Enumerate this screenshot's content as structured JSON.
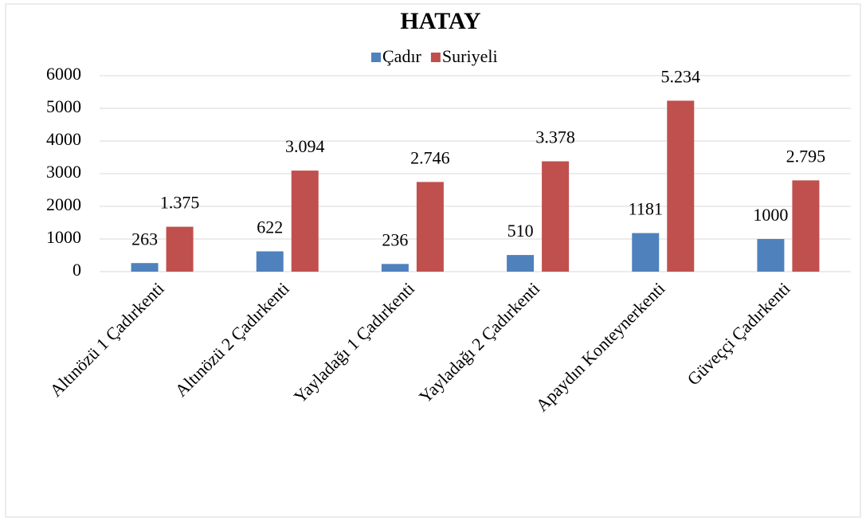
{
  "chart_data": {
    "type": "bar",
    "title": "HATAY",
    "categories": [
      "Altınözü 1 Çadırkenti",
      "Altınözü 2 Çadırkenti",
      "Yayladağı 1 Çadırkenti",
      "Yayladağı 2 Çadırkenti",
      "Apaydın Konteynerkenti",
      "Güveççi Çadırkenti"
    ],
    "series": [
      {
        "name": "Çadır",
        "color": "#4f81bd",
        "values": [
          263,
          622,
          236,
          510,
          1181,
          1000
        ]
      },
      {
        "name": "Suriyeli",
        "color": "#c0504d",
        "values": [
          1375,
          3094,
          2746,
          3378,
          5234,
          2795
        ],
        "value_labels": [
          "1.375",
          "3.094",
          "2.746",
          "3.378",
          "5.234",
          "2.795"
        ]
      }
    ],
    "ylim": [
      0,
      6000
    ],
    "yticks": [
      0,
      1000,
      2000,
      3000,
      4000,
      5000,
      6000
    ],
    "grid": true,
    "legend": "top"
  }
}
